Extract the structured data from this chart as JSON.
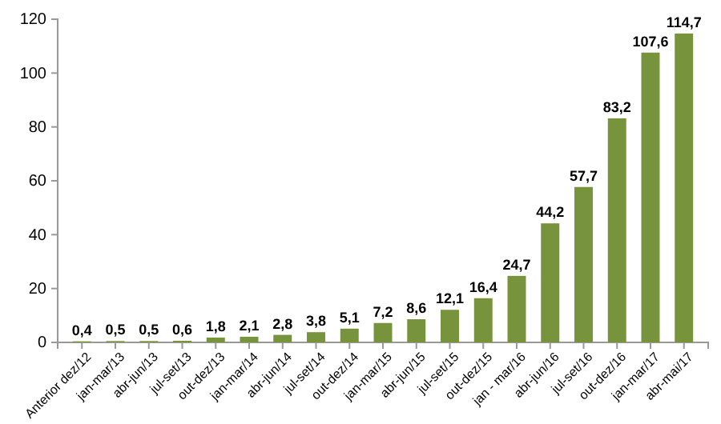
{
  "chart_data": {
    "type": "bar",
    "categories": [
      "Anterior dez/12",
      "jan-mar/13",
      "abr-jun/13",
      "jul-set/13",
      "out-dez/13",
      "jan-mar/14",
      "abr-jun/14",
      "jul-set/14",
      "out-dez/14",
      "jan-mar/15",
      "abr-jun/15",
      "jul-set/15",
      "out-dez/15",
      "jan - mar/16",
      "abr-jun/16",
      "jul-set/16",
      "out-dez/16",
      "jan-mar/17",
      "abr-mai/17"
    ],
    "values": [
      0.4,
      0.5,
      0.5,
      0.6,
      1.8,
      2.1,
      2.8,
      3.8,
      5.1,
      7.2,
      8.6,
      12.1,
      16.4,
      24.7,
      44.2,
      57.7,
      83.2,
      107.6,
      114.7
    ],
    "value_labels": [
      "0,4",
      "0,5",
      "0,5",
      "0,6",
      "1,8",
      "2,1",
      "2,8",
      "3,8",
      "5,1",
      "7,2",
      "8,6",
      "12,1",
      "16,4",
      "24,7",
      "44,2",
      "57,7",
      "83,2",
      "107,6",
      "114,7"
    ],
    "color": "#77933c",
    "ylim": [
      0,
      120
    ],
    "yticks": [
      0,
      20,
      40,
      60,
      80,
      100,
      120
    ],
    "grid": false
  }
}
